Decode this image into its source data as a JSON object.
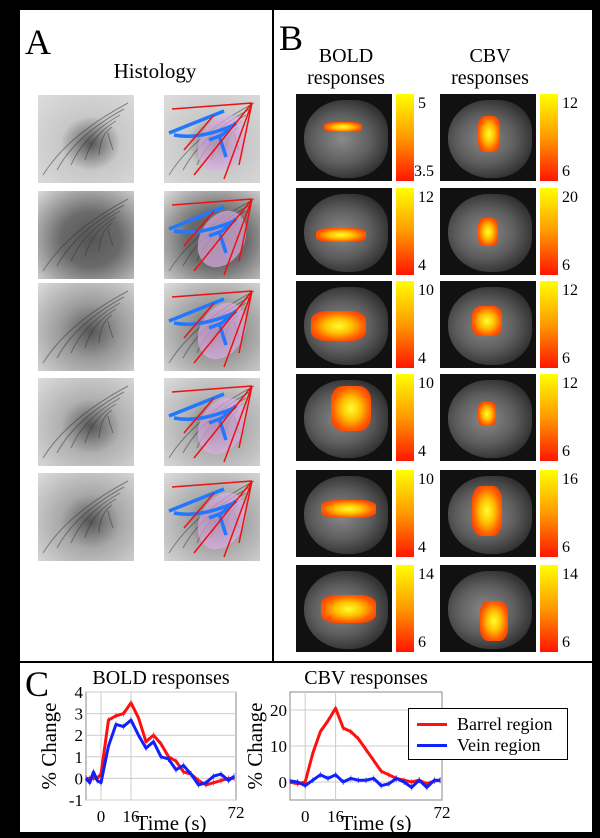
{
  "panel_a": {
    "label": "A",
    "title": "Histology",
    "rows": 5
  },
  "panel_b": {
    "label": "B",
    "bold_header": [
      "BOLD",
      "responses"
    ],
    "cbv_header": [
      "CBV",
      "responses"
    ],
    "bold_colorbars": [
      {
        "max": "5",
        "min": "3.5"
      },
      {
        "max": "12",
        "min": "4"
      },
      {
        "max": "10",
        "min": "4"
      },
      {
        "max": "10",
        "min": "4"
      },
      {
        "max": "10",
        "min": "4"
      },
      {
        "max": "14",
        "min": "6"
      }
    ],
    "cbv_colorbars": [
      {
        "max": "12",
        "min": "6"
      },
      {
        "max": "20",
        "min": "6"
      },
      {
        "max": "12",
        "min": "6"
      },
      {
        "max": "12",
        "min": "6"
      },
      {
        "max": "16",
        "min": "6"
      },
      {
        "max": "14",
        "min": "6"
      }
    ]
  },
  "panel_c": {
    "label": "C",
    "legend": [
      {
        "label": "Barrel region",
        "color": "#ff1010"
      },
      {
        "label": "Vein region",
        "color": "#1020ff"
      }
    ]
  },
  "chart_data": [
    {
      "type": "line",
      "title": "BOLD responses",
      "xlabel": "Time (s)",
      "ylabel": "% Change",
      "xlim": [
        -8,
        72
      ],
      "ylim": [
        -1,
        4
      ],
      "xticks": [
        "0",
        "16",
        "72"
      ],
      "xtick_values": [
        0,
        16,
        72
      ],
      "yticks": [
        "-1",
        "0",
        "1",
        "2",
        "3",
        "4"
      ],
      "ytick_values": [
        -1,
        0,
        1,
        2,
        3,
        4
      ],
      "grid": true,
      "x": [
        -8,
        -6,
        -4,
        -2,
        0,
        4,
        8,
        12,
        16,
        20,
        24,
        28,
        32,
        36,
        40,
        44,
        48,
        52,
        56,
        60,
        64,
        68,
        71
      ],
      "series": [
        {
          "name": "Barrel region",
          "color": "#ff1010",
          "values": [
            0,
            0,
            0,
            0,
            0.2,
            2.7,
            2.9,
            3.0,
            3.5,
            2.8,
            1.7,
            2.0,
            1.6,
            1.0,
            0.8,
            0.3,
            0.2,
            -0.1,
            -0.3,
            -0.2,
            -0.1,
            0,
            0
          ]
        },
        {
          "name": "Vein region",
          "color": "#1020ff",
          "values": [
            0,
            -0.2,
            0.3,
            -0.1,
            -0.2,
            1.5,
            2.5,
            2.4,
            2.7,
            2.0,
            1.4,
            1.7,
            1.0,
            0.9,
            0.4,
            0.6,
            0.2,
            -0.3,
            -0.2,
            0.1,
            0.2,
            -0.1,
            0.1
          ]
        }
      ]
    },
    {
      "type": "line",
      "title": "CBV responses",
      "xlabel": "Time (s)",
      "ylabel": "% Change",
      "xlim": [
        -8,
        72
      ],
      "ylim": [
        -5,
        25
      ],
      "xticks": [
        "0",
        "16",
        "72"
      ],
      "xtick_values": [
        0,
        16,
        72
      ],
      "yticks": [
        "0",
        "10",
        "20"
      ],
      "ytick_values": [
        0,
        10,
        20
      ],
      "grid": true,
      "x": [
        -8,
        -4,
        0,
        4,
        8,
        12,
        16,
        20,
        24,
        28,
        32,
        36,
        40,
        44,
        48,
        52,
        56,
        60,
        64,
        68,
        71
      ],
      "series": [
        {
          "name": "Barrel region",
          "color": "#ff1010",
          "values": [
            0,
            -0.5,
            0,
            8,
            14,
            17,
            20.5,
            15,
            14,
            12,
            9,
            6,
            3,
            2,
            1,
            0.5,
            0,
            0.5,
            -0.5,
            0.3,
            0.5
          ]
        },
        {
          "name": "Vein region",
          "color": "#1020ff",
          "values": [
            0.3,
            0,
            -1,
            0.5,
            2,
            1,
            2,
            0,
            1,
            0.5,
            0.5,
            1,
            -1,
            -0.5,
            1,
            0,
            -1.5,
            0.5,
            -1.5,
            0.5,
            0.5
          ]
        }
      ]
    }
  ]
}
